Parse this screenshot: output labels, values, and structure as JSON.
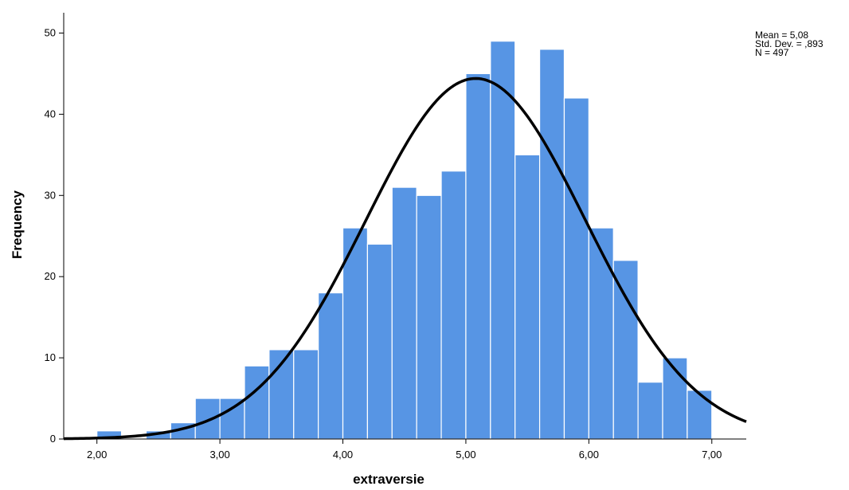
{
  "chart_data": {
    "type": "histogram",
    "xlabel": "extraversie",
    "ylabel": "Frequency",
    "xlim": [
      1.73,
      7.28
    ],
    "ylim": [
      0,
      52.5
    ],
    "x_ticks": [
      {
        "value": 2.0,
        "label": "2,00"
      },
      {
        "value": 3.0,
        "label": "3,00"
      },
      {
        "value": 4.0,
        "label": "4,00"
      },
      {
        "value": 5.0,
        "label": "5,00"
      },
      {
        "value": 6.0,
        "label": "6,00"
      },
      {
        "value": 7.0,
        "label": "7,00"
      }
    ],
    "y_ticks": [
      {
        "value": 0,
        "label": "0"
      },
      {
        "value": 10,
        "label": "10"
      },
      {
        "value": 20,
        "label": "20"
      },
      {
        "value": 30,
        "label": "30"
      },
      {
        "value": 40,
        "label": "40"
      },
      {
        "value": 50,
        "label": "50"
      }
    ],
    "bins": [
      {
        "x0": 2.0,
        "x1": 2.2,
        "count": 1
      },
      {
        "x0": 2.2,
        "x1": 2.4,
        "count": 0
      },
      {
        "x0": 2.4,
        "x1": 2.6,
        "count": 1
      },
      {
        "x0": 2.6,
        "x1": 2.8,
        "count": 2
      },
      {
        "x0": 2.8,
        "x1": 3.0,
        "count": 5
      },
      {
        "x0": 3.0,
        "x1": 3.2,
        "count": 5
      },
      {
        "x0": 3.2,
        "x1": 3.4,
        "count": 9
      },
      {
        "x0": 3.4,
        "x1": 3.6,
        "count": 11
      },
      {
        "x0": 3.6,
        "x1": 3.8,
        "count": 11
      },
      {
        "x0": 3.8,
        "x1": 4.0,
        "count": 18
      },
      {
        "x0": 4.0,
        "x1": 4.2,
        "count": 26
      },
      {
        "x0": 4.2,
        "x1": 4.4,
        "count": 24
      },
      {
        "x0": 4.4,
        "x1": 4.6,
        "count": 31
      },
      {
        "x0": 4.6,
        "x1": 4.8,
        "count": 30
      },
      {
        "x0": 4.8,
        "x1": 5.0,
        "count": 33
      },
      {
        "x0": 5.0,
        "x1": 5.2,
        "count": 45
      },
      {
        "x0": 5.2,
        "x1": 5.4,
        "count": 49
      },
      {
        "x0": 5.4,
        "x1": 5.6,
        "count": 35
      },
      {
        "x0": 5.6,
        "x1": 5.8,
        "count": 48
      },
      {
        "x0": 5.8,
        "x1": 6.0,
        "count": 42
      },
      {
        "x0": 6.0,
        "x1": 6.2,
        "count": 26
      },
      {
        "x0": 6.2,
        "x1": 6.4,
        "count": 22
      },
      {
        "x0": 6.4,
        "x1": 6.6,
        "count": 7
      },
      {
        "x0": 6.6,
        "x1": 6.8,
        "count": 10
      },
      {
        "x0": 6.8,
        "x1": 7.0,
        "count": 6
      }
    ],
    "normal_curve": {
      "mean": 5.08,
      "sd": 0.893,
      "n": 497,
      "bin_width": 0.2
    },
    "stats_text": [
      "Mean = 5,08",
      "Std. Dev. = ,893",
      "N = 497"
    ],
    "bar_color": "#5795e4",
    "bar_edge_color": "#ffffff",
    "curve_color": "#000000",
    "grid": false,
    "legend": "none"
  }
}
